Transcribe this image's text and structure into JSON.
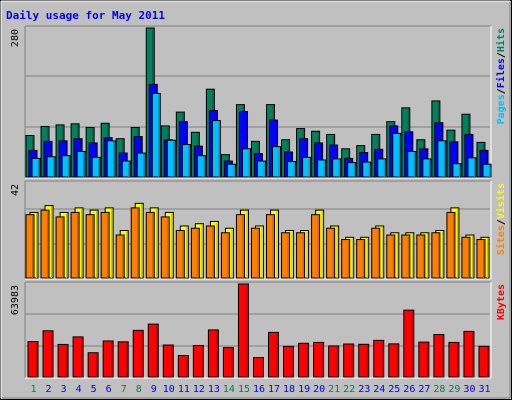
{
  "title": "Daily usage for May 2011",
  "colors": {
    "background": "#c0c0c0",
    "title": "#0000ff",
    "hits": "#00805c",
    "files": "#0000ff",
    "pages": "#00c0ff",
    "visits": "#ffff00",
    "sites": "#ff8000",
    "kbytes": "#ff0000",
    "day_normal": "#0000ff",
    "day_weekend": "#00805c"
  },
  "chart_data": [
    {
      "type": "bar",
      "title": "Daily usage for May 2011",
      "categories": [
        "1",
        "2",
        "3",
        "4",
        "5",
        "6",
        "7",
        "8",
        "9",
        "10",
        "11",
        "12",
        "13",
        "14",
        "15",
        "16",
        "17",
        "18",
        "19",
        "20",
        "21",
        "22",
        "23",
        "24",
        "25",
        "26",
        "27",
        "28",
        "29",
        "30",
        "31"
      ],
      "weekend_days": [
        "1",
        "7",
        "8",
        "14",
        "15",
        "21",
        "22",
        "28",
        "29"
      ],
      "ymax_label": "280",
      "ylim": [
        0,
        280
      ],
      "axis_legend": [
        "Pages",
        "/",
        "Files",
        "/",
        "Hits"
      ],
      "series": [
        {
          "name": "Hits",
          "values": [
            78,
            95,
            98,
            100,
            93,
            101,
            72,
            93,
            280,
            96,
            122,
            84,
            165,
            42,
            136,
            67,
            136,
            70,
            91,
            86,
            80,
            53,
            59,
            80,
            104,
            130,
            70,
            143,
            88,
            118,
            65
          ]
        },
        {
          "name": "Files",
          "values": [
            50,
            67,
            68,
            72,
            64,
            74,
            45,
            76,
            174,
            70,
            104,
            58,
            125,
            30,
            123,
            44,
            107,
            47,
            72,
            64,
            60,
            35,
            46,
            52,
            96,
            85,
            53,
            102,
            66,
            80,
            50
          ]
        },
        {
          "name": "Pages",
          "values": [
            35,
            38,
            40,
            48,
            37,
            68,
            30,
            45,
            157,
            69,
            61,
            40,
            106,
            24,
            53,
            30,
            57,
            29,
            37,
            32,
            34,
            27,
            28,
            34,
            82,
            48,
            34,
            68,
            25,
            36,
            24
          ]
        }
      ]
    },
    {
      "type": "bar",
      "categories": [
        "1",
        "2",
        "3",
        "4",
        "5",
        "6",
        "7",
        "8",
        "9",
        "10",
        "11",
        "12",
        "13",
        "14",
        "15",
        "16",
        "17",
        "18",
        "19",
        "20",
        "21",
        "22",
        "23",
        "24",
        "25",
        "26",
        "27",
        "28",
        "29",
        "30",
        "31"
      ],
      "ymax_label": "42",
      "ylim": [
        0,
        42
      ],
      "axis_legend": [
        "Sites",
        "/",
        "Visits"
      ],
      "series": [
        {
          "name": "Visits",
          "values": [
            29,
            32,
            29,
            31,
            30,
            31,
            21,
            33,
            31,
            29,
            23,
            24,
            25,
            22,
            30,
            23,
            30,
            21,
            21,
            30,
            23,
            18,
            18,
            23,
            20,
            20,
            20,
            21,
            31,
            19,
            18
          ]
        },
        {
          "name": "Sites",
          "values": [
            28,
            30,
            27,
            29,
            28,
            29,
            19,
            31,
            29,
            27,
            21,
            22,
            23,
            20,
            28,
            22,
            28,
            20,
            20,
            28,
            22,
            17,
            17,
            22,
            19,
            19,
            19,
            20,
            29,
            18,
            17
          ]
        }
      ]
    },
    {
      "type": "bar",
      "categories": [
        "1",
        "2",
        "3",
        "4",
        "5",
        "6",
        "7",
        "8",
        "9",
        "10",
        "11",
        "12",
        "13",
        "14",
        "15",
        "16",
        "17",
        "18",
        "19",
        "20",
        "21",
        "22",
        "23",
        "24",
        "25",
        "26",
        "27",
        "28",
        "29",
        "30",
        "31"
      ],
      "ymax_label": "63983",
      "ylim": [
        0,
        63983
      ],
      "axis_legend": [
        "KBytes"
      ],
      "series": [
        {
          "name": "KBytes",
          "values": [
            24400,
            31800,
            22400,
            27600,
            16700,
            24800,
            24200,
            32100,
            36400,
            22000,
            14800,
            21700,
            32400,
            20200,
            64000,
            13400,
            30700,
            21100,
            23200,
            23800,
            21400,
            22700,
            22500,
            25200,
            22800,
            46000,
            24000,
            29200,
            23800,
            31400,
            21100
          ]
        }
      ]
    }
  ]
}
